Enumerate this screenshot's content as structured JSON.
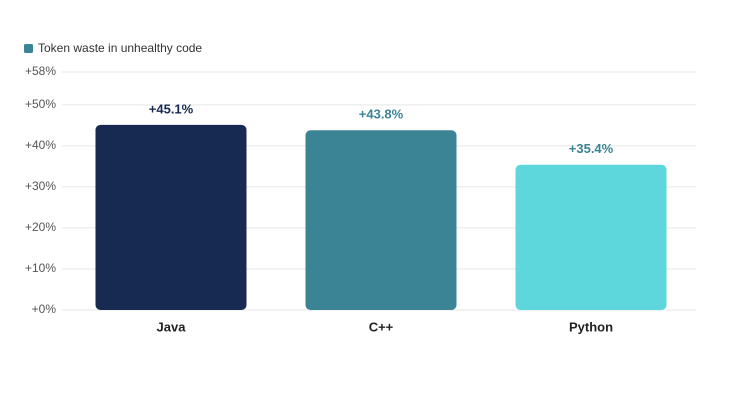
{
  "chart_data": {
    "type": "bar",
    "legend": {
      "name": "Token waste in unhealthy code",
      "color": "#3a8496"
    },
    "categories": [
      "Java",
      "C++",
      "Python"
    ],
    "values": [
      45.1,
      43.8,
      35.4
    ],
    "value_labels": [
      "+45.1%",
      "+43.8%",
      "+35.4%"
    ],
    "colors": [
      "#172a51",
      "#3a8496",
      "#5dd6dc"
    ],
    "label_colors": [
      "#172a51",
      "#3a8496",
      "#3a8496"
    ],
    "ylim": [
      0,
      58
    ],
    "yticks": [
      {
        "value": 0,
        "label": "+0%"
      },
      {
        "value": 10,
        "label": "+10%"
      },
      {
        "value": 20,
        "label": "+20%"
      },
      {
        "value": 30,
        "label": "+30%"
      },
      {
        "value": 40,
        "label": "+40%"
      },
      {
        "value": 50,
        "label": "+50%"
      },
      {
        "value": 58,
        "label": "+58%"
      }
    ],
    "grid": true
  }
}
